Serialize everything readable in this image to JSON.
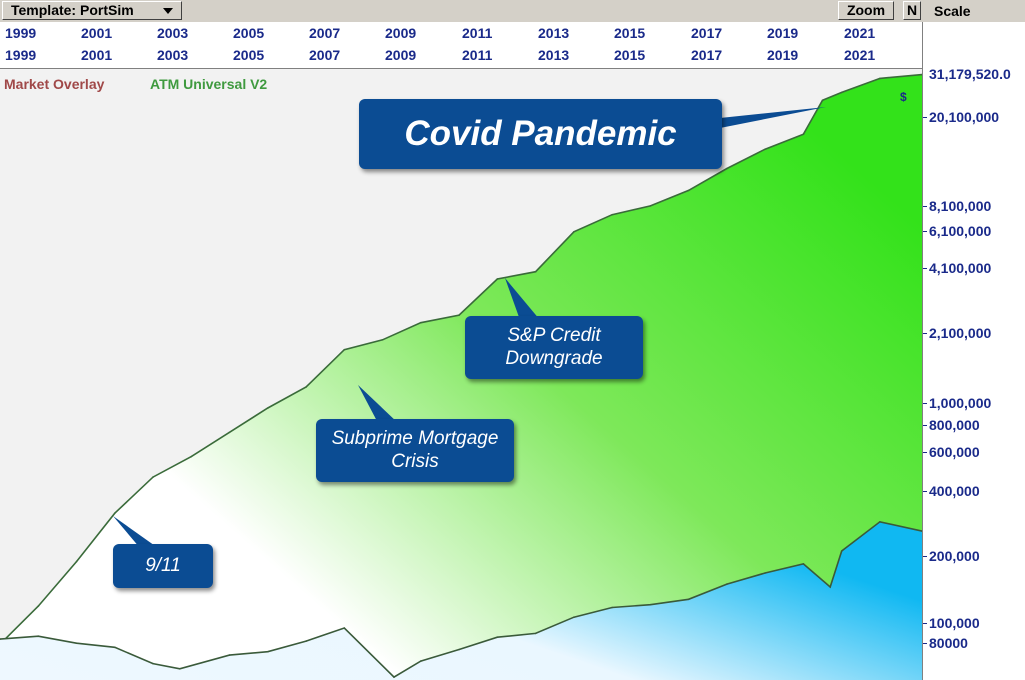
{
  "toolbar": {
    "template_label": "Template: PortSim",
    "zoom_label": "Zoom",
    "n_label": "N",
    "scale_label": "Scale"
  },
  "years": [
    "1999",
    "2001",
    "2003",
    "2005",
    "2007",
    "2009",
    "2011",
    "2013",
    "2015",
    "2017",
    "2019",
    "2021"
  ],
  "legend": {
    "market_overlay": "Market Overlay",
    "strategy": "ATM Universal V2",
    "currency_marker": "$"
  },
  "scale": {
    "last_value": "31,179,520.0",
    "ticks": [
      "20,100,000",
      "8,100,000",
      "6,100,000",
      "4,100,000",
      "2,100,000",
      "1,000,000",
      "800,000",
      "600,000",
      "400,000",
      "200,000",
      "100,000",
      "80000"
    ]
  },
  "callouts": {
    "covid": "Covid Pandemic",
    "sp": "S&P Credit Downgrade",
    "subprime": "Subprime Mortgage Crisis",
    "nine_eleven": "9/11"
  },
  "colors": {
    "equity_fill_start": "#ffffff",
    "equity_fill_end": "#33e21a",
    "equity_line": "#3a6b3a",
    "market_fill_start": "#eef8ff",
    "market_fill_end": "#10b8f2",
    "market_line": "#3a5a3a",
    "callout_bg": "#0b4c93",
    "axis_text": "#1a2a8a"
  },
  "chart_data": {
    "type": "area",
    "y_scale": "log",
    "ylim": [
      66000,
      33000000
    ],
    "xlim": [
      1998.5,
      2022.6
    ],
    "series": [
      {
        "name": "ATM Universal V2",
        "x": [
          1998.5,
          1999.5,
          2000.5,
          2001.5,
          2002.5,
          2003.5,
          2004.5,
          2005.5,
          2006.5,
          2007.5,
          2008.5,
          2009.5,
          2010.5,
          2011.5,
          2012.5,
          2013.5,
          2014.5,
          2015.5,
          2016.5,
          2017.5,
          2018.5,
          2019.5,
          2020.0,
          2020.5,
          2021.5,
          2022.6
        ],
        "values": [
          95000,
          140000,
          220000,
          360000,
          520000,
          640000,
          820000,
          1050000,
          1300000,
          1900000,
          2100000,
          2500000,
          2700000,
          3900000,
          4200000,
          6300000,
          7500000,
          8200000,
          9600000,
          12000000,
          14600000,
          17000000,
          24000000,
          26000000,
          30000000,
          31179520
        ]
      },
      {
        "name": "Market Overlay",
        "x": [
          1998.5,
          1999.5,
          2000.5,
          2001.5,
          2002.5,
          2003.2,
          2004.5,
          2005.5,
          2006.5,
          2007.5,
          2008.8,
          2009.5,
          2010.5,
          2011.5,
          2012.5,
          2013.5,
          2014.5,
          2015.5,
          2016.5,
          2017.5,
          2018.5,
          2019.5,
          2020.2,
          2020.5,
          2021.5,
          2022.6
        ],
        "values": [
          100000,
          103000,
          96000,
          92000,
          78000,
          74000,
          85000,
          88000,
          98000,
          112000,
          68000,
          80000,
          90000,
          102000,
          106000,
          125000,
          138000,
          142000,
          150000,
          175000,
          196000,
          215000,
          170000,
          245000,
          330000,
          300000
        ]
      }
    ]
  }
}
